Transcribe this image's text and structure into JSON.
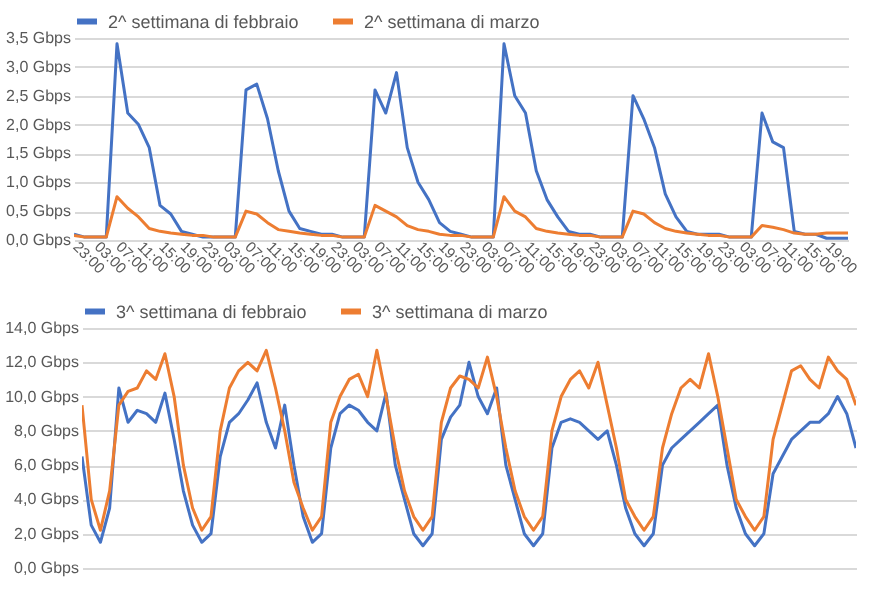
{
  "chart_data": [
    {
      "type": "line",
      "legend": "top",
      "grid": "y",
      "categories": [
        "23:00",
        null,
        "03:00",
        null,
        "07:00",
        null,
        "11:00",
        null,
        "15:00",
        null,
        "19:00",
        null,
        "23:00",
        null,
        "03:00",
        null,
        "07:00",
        null,
        "11:00",
        null,
        "15:00",
        null,
        "19:00",
        null,
        "23:00",
        null,
        "03:00",
        null,
        "07:00",
        null,
        "11:00",
        null,
        "15:00",
        null,
        "19:00",
        null,
        "23:00",
        null,
        "03:00",
        null,
        "07:00",
        null,
        "11:00",
        null,
        "15:00",
        null,
        "19:00",
        null,
        "23:00",
        null,
        "03:00",
        null,
        "07:00",
        null,
        "11:00",
        null,
        "15:00",
        null,
        "19:00",
        null,
        "23:00",
        null,
        "03:00",
        null,
        "07:00",
        null,
        "11:00",
        null,
        "15:00",
        null,
        "19:00",
        null,
        null
      ],
      "ylim": [
        0,
        3.5
      ],
      "yticks": [
        {
          "value": 0,
          "label": "0,0 Gbps"
        },
        {
          "value": 0.5,
          "label": "0,5 Gbps"
        },
        {
          "value": 1,
          "label": "1,0 Gbps"
        },
        {
          "value": 1.5,
          "label": "1,5 Gbps"
        },
        {
          "value": 2,
          "label": "2,0 Gbps"
        },
        {
          "value": 2.5,
          "label": "2,5 Gbps"
        },
        {
          "value": 3,
          "label": "3,0 Gbps"
        },
        {
          "value": 3.5,
          "label": "3,5 Gbps"
        }
      ],
      "series": [
        {
          "name": "2^ settimana di febbraio",
          "color": "#4472c4",
          "values": [
            0.1,
            0.05,
            0.05,
            0.05,
            3.4,
            2.2,
            2.0,
            1.6,
            0.6,
            0.45,
            0.15,
            0.1,
            0.05,
            0.05,
            0.05,
            0.05,
            2.6,
            2.7,
            2.1,
            1.2,
            0.5,
            0.2,
            0.15,
            0.1,
            0.1,
            0.05,
            0.05,
            0.05,
            2.6,
            2.2,
            2.9,
            1.6,
            1.0,
            0.7,
            0.3,
            0.15,
            0.1,
            0.05,
            0.05,
            0.05,
            3.4,
            2.5,
            2.2,
            1.2,
            0.7,
            0.4,
            0.15,
            0.1,
            0.1,
            0.05,
            0.05,
            0.05,
            2.5,
            2.1,
            1.6,
            0.8,
            0.4,
            0.15,
            0.1,
            0.1,
            0.1,
            0.05,
            0.05,
            0.05,
            2.2,
            1.7,
            1.6,
            0.15,
            0.1,
            0.1,
            0.03,
            0.03,
            0.03
          ]
        },
        {
          "name": "2^ settimana di marzo",
          "color": "#ed7d31",
          "values": [
            0.08,
            0.05,
            0.05,
            0.05,
            0.75,
            0.55,
            0.4,
            0.2,
            0.15,
            0.12,
            0.1,
            0.08,
            0.08,
            0.05,
            0.05,
            0.05,
            0.5,
            0.45,
            0.3,
            0.18,
            0.15,
            0.12,
            0.1,
            0.08,
            0.08,
            0.05,
            0.05,
            0.05,
            0.6,
            0.5,
            0.4,
            0.25,
            0.18,
            0.15,
            0.1,
            0.08,
            0.08,
            0.05,
            0.05,
            0.05,
            0.75,
            0.5,
            0.4,
            0.2,
            0.15,
            0.12,
            0.1,
            0.08,
            0.08,
            0.05,
            0.05,
            0.05,
            0.5,
            0.45,
            0.3,
            0.2,
            0.15,
            0.12,
            0.1,
            0.08,
            0.08,
            0.05,
            0.05,
            0.05,
            0.25,
            0.22,
            0.18,
            0.12,
            0.1,
            0.1,
            0.12,
            0.12,
            0.12
          ]
        }
      ]
    },
    {
      "type": "line",
      "legend": "top",
      "grid": "y",
      "tick_labels": "y",
      "ylim": [
        0,
        14
      ],
      "yticks": [
        {
          "value": 0,
          "label": "0,0 Gbps"
        },
        {
          "value": 2,
          "label": "2,0 Gbps"
        },
        {
          "value": 4,
          "label": "4,0 Gbps"
        },
        {
          "value": 6,
          "label": "6,0 Gbps"
        },
        {
          "value": 8,
          "label": "8,0 Gbps"
        },
        {
          "value": 10,
          "label": "10,0 Gbps"
        },
        {
          "value": 12,
          "label": "12,0 Gbps"
        },
        {
          "value": 14,
          "label": "14,0 Gbps"
        }
      ],
      "categories": [
        null,
        null,
        null,
        null,
        null,
        null,
        null,
        null,
        null,
        null,
        null,
        null,
        null,
        null,
        null,
        null,
        null,
        null,
        null,
        null,
        null,
        null,
        null,
        null,
        null,
        null,
        null,
        null,
        null,
        null,
        null,
        null,
        null,
        null,
        null,
        null,
        null,
        null,
        null,
        null,
        null,
        null,
        null,
        null,
        null,
        null,
        null,
        null,
        null,
        null,
        null,
        null,
        null,
        null,
        null,
        null,
        null,
        null,
        null,
        null,
        null,
        null,
        null,
        null,
        null,
        null,
        null,
        null,
        null,
        null,
        null,
        null,
        null,
        null,
        null,
        null,
        null,
        null,
        null,
        null,
        null,
        null,
        null,
        null,
        null
      ],
      "series": [
        {
          "name": "3^ settimana di febbraio",
          "color": "#4472c4",
          "values": [
            6.5,
            2.5,
            1.5,
            3.5,
            10.5,
            8.5,
            9.2,
            9.0,
            8.5,
            10.2,
            7.5,
            4.5,
            2.5,
            1.5,
            2.0,
            6.5,
            8.5,
            9.0,
            9.8,
            10.8,
            8.5,
            7.0,
            9.5,
            6.0,
            3.0,
            1.5,
            2.0,
            7.0,
            9.0,
            9.5,
            9.2,
            8.5,
            8.0,
            10.2,
            6.0,
            4.0,
            2.0,
            1.3,
            2.0,
            7.5,
            8.8,
            9.5,
            12.0,
            10.0,
            9.0,
            10.5,
            6.0,
            4.0,
            2.0,
            1.3,
            2.0,
            7.0,
            8.5,
            8.7,
            8.5,
            8.0,
            7.5,
            8.0,
            6.0,
            3.5,
            2.0,
            1.3,
            2.0,
            6.0,
            7.0,
            7.5,
            8.0,
            8.5,
            9.0,
            9.5,
            6.0,
            3.5,
            2.0,
            1.3,
            2.0,
            5.5,
            6.5,
            7.5,
            8.0,
            8.5,
            8.5,
            9.0,
            10.0,
            9.0,
            7.0
          ]
        },
        {
          "name": "3^ settimana di marzo",
          "color": "#ed7d31",
          "values": [
            9.5,
            4.0,
            2.2,
            4.5,
            9.5,
            10.3,
            10.5,
            11.5,
            11.0,
            12.5,
            10.0,
            6.0,
            3.5,
            2.2,
            3.0,
            8.0,
            10.5,
            11.5,
            12.0,
            11.5,
            12.7,
            10.5,
            8.0,
            5.0,
            3.5,
            2.2,
            3.0,
            8.5,
            10.0,
            11.0,
            11.3,
            10.0,
            12.7,
            10.0,
            7.0,
            4.5,
            3.0,
            2.2,
            3.0,
            8.5,
            10.5,
            11.2,
            11.0,
            10.5,
            12.3,
            10.0,
            7.0,
            4.5,
            3.0,
            2.2,
            3.0,
            8.0,
            10.0,
            11.0,
            11.5,
            10.5,
            12.0,
            9.5,
            7.0,
            4.0,
            3.0,
            2.2,
            3.0,
            7.0,
            9.0,
            10.5,
            11.0,
            10.5,
            12.5,
            10.0,
            7.0,
            4.0,
            3.0,
            2.2,
            3.0,
            7.5,
            9.5,
            11.5,
            11.8,
            11.0,
            10.5,
            12.3,
            11.5,
            11.0,
            9.5
          ]
        }
      ]
    }
  ]
}
